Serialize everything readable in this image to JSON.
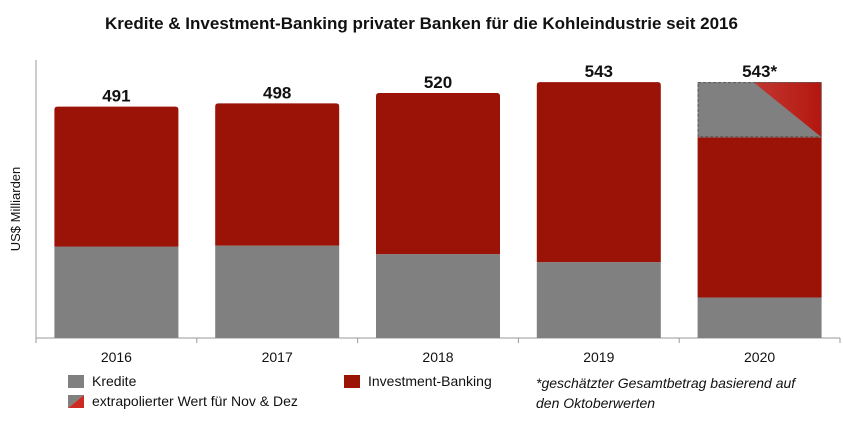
{
  "chart_data": {
    "type": "bar",
    "title": "Kredite & Investment-Banking privater Banken für die Kohleindustrie seit 2016",
    "ylabel": "US$ Milliarden",
    "xlabel": "",
    "ylim": [
      0,
      590
    ],
    "grid": false,
    "legend_position": "bottom",
    "categories": [
      "2016",
      "2017",
      "2018",
      "2019",
      "2020"
    ],
    "totals_labels": [
      "491",
      "498",
      "520",
      "543",
      "543*"
    ],
    "series": [
      {
        "name": "Kredite",
        "color": "#808080",
        "values": [
          194,
          196,
          178,
          161,
          86
        ]
      },
      {
        "name": "Investment-Banking",
        "color": "#9b1206",
        "values": [
          297,
          302,
          342,
          382,
          340
        ]
      },
      {
        "name": "extrapolierter Wert für Nov & Dez",
        "color": "#808080",
        "accent": "#cc2a22",
        "values": [
          0,
          0,
          0,
          0,
          117
        ]
      }
    ],
    "footnote_line1": "*geschätzter Gesamtbetrag basierend auf",
    "footnote_line2": "den Oktoberwerten"
  },
  "colors": {
    "gray": "#808080",
    "red": "#9b1206",
    "accent": "#cc2a22",
    "axis": "#9a9a9a"
  }
}
